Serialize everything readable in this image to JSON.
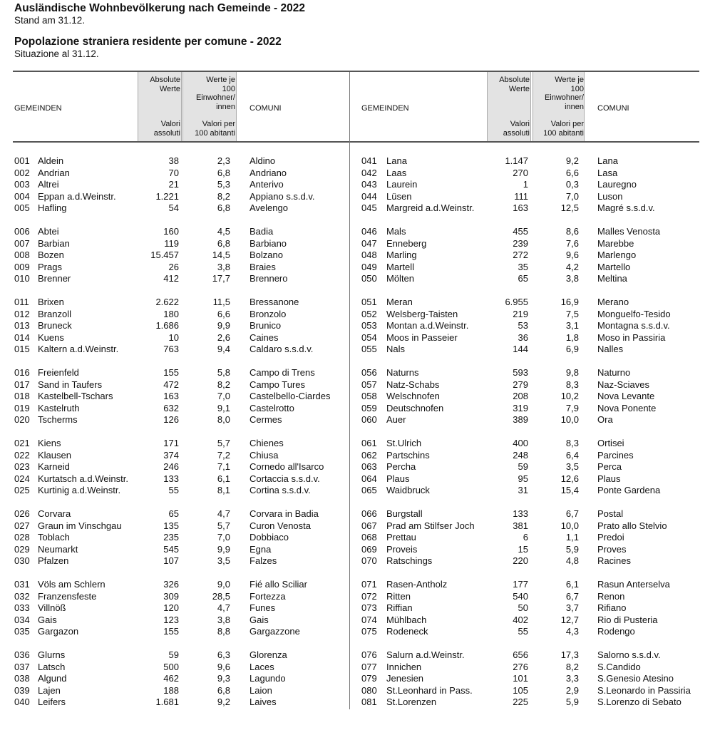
{
  "title_de": "Ausländische Wohnbevölkerung nach Gemeinde - 2022",
  "subtitle_de": "Stand am 31.12.",
  "title_it": "Popolazione straniera residente per comune - 2022",
  "subtitle_it": "Situazione al 31.12.",
  "header": {
    "gemeinden": "GEMEINDEN",
    "comuni": "COMUNI",
    "abs_de": [
      "Absolute",
      "Werte"
    ],
    "abs_it": [
      "Valori",
      "assoluti"
    ],
    "rel_de": [
      "Werte je",
      "100",
      "Einwohner/",
      "innen"
    ],
    "rel_it": [
      "Valori per",
      "100 abitanti"
    ]
  },
  "left": [
    [
      [
        "001",
        "Aldein",
        "38",
        "2,3",
        "Aldino"
      ],
      [
        "002",
        "Andrian",
        "70",
        "6,8",
        "Andriano"
      ],
      [
        "003",
        "Altrei",
        "21",
        "5,3",
        "Anterivo"
      ],
      [
        "004",
        "Eppan a.d.Weinstr.",
        "1.221",
        "8,2",
        "Appiano s.s.d.v."
      ],
      [
        "005",
        "Hafling",
        "54",
        "6,8",
        "Avelengo"
      ]
    ],
    [
      [
        "006",
        "Abtei",
        "160",
        "4,5",
        "Badia"
      ],
      [
        "007",
        "Barbian",
        "119",
        "6,8",
        "Barbiano"
      ],
      [
        "008",
        "Bozen",
        "15.457",
        "14,5",
        "Bolzano"
      ],
      [
        "009",
        "Prags",
        "26",
        "3,8",
        "Braies"
      ],
      [
        "010",
        "Brenner",
        "412",
        "17,7",
        "Brennero"
      ]
    ],
    [
      [
        "011",
        "Brixen",
        "2.622",
        "11,5",
        "Bressanone"
      ],
      [
        "012",
        "Branzoll",
        "180",
        "6,6",
        "Bronzolo"
      ],
      [
        "013",
        "Bruneck",
        "1.686",
        "9,9",
        "Brunico"
      ],
      [
        "014",
        "Kuens",
        "10",
        "2,6",
        "Caines"
      ],
      [
        "015",
        "Kaltern a.d.Weinstr.",
        "763",
        "9,4",
        "Caldaro s.s.d.v."
      ]
    ],
    [
      [
        "016",
        "Freienfeld",
        "155",
        "5,8",
        "Campo di Trens"
      ],
      [
        "017",
        "Sand in Taufers",
        "472",
        "8,2",
        "Campo Tures"
      ],
      [
        "018",
        "Kastelbell-Tschars",
        "163",
        "7,0",
        "Castelbello-Ciardes"
      ],
      [
        "019",
        "Kastelruth",
        "632",
        "9,1",
        "Castelrotto"
      ],
      [
        "020",
        "Tscherms",
        "126",
        "8,0",
        "Cermes"
      ]
    ],
    [
      [
        "021",
        "Kiens",
        "171",
        "5,7",
        "Chienes"
      ],
      [
        "022",
        "Klausen",
        "374",
        "7,2",
        "Chiusa"
      ],
      [
        "023",
        "Karneid",
        "246",
        "7,1",
        "Cornedo all'Isarco"
      ],
      [
        "024",
        "Kurtatsch a.d.Weinstr.",
        "133",
        "6,1",
        "Cortaccia s.s.d.v."
      ],
      [
        "025",
        "Kurtinig a.d.Weinstr.",
        "55",
        "8,1",
        "Cortina s.s.d.v."
      ]
    ],
    [
      [
        "026",
        "Corvara",
        "65",
        "4,7",
        "Corvara in Badia"
      ],
      [
        "027",
        "Graun im Vinschgau",
        "135",
        "5,7",
        "Curon Venosta"
      ],
      [
        "028",
        "Toblach",
        "235",
        "7,0",
        "Dobbiaco"
      ],
      [
        "029",
        "Neumarkt",
        "545",
        "9,9",
        "Egna"
      ],
      [
        "030",
        "Pfalzen",
        "107",
        "3,5",
        "Falzes"
      ]
    ],
    [
      [
        "031",
        "Völs am Schlern",
        "326",
        "9,0",
        "Fié allo Sciliar"
      ],
      [
        "032",
        "Franzensfeste",
        "309",
        "28,5",
        "Fortezza"
      ],
      [
        "033",
        "Villnöß",
        "120",
        "4,7",
        "Funes"
      ],
      [
        "034",
        "Gais",
        "123",
        "3,8",
        "Gais"
      ],
      [
        "035",
        "Gargazon",
        "155",
        "8,8",
        "Gargazzone"
      ]
    ],
    [
      [
        "036",
        "Glurns",
        "59",
        "6,3",
        "Glorenza"
      ],
      [
        "037",
        "Latsch",
        "500",
        "9,6",
        "Laces"
      ],
      [
        "038",
        "Algund",
        "462",
        "9,3",
        "Lagundo"
      ],
      [
        "039",
        "Lajen",
        "188",
        "6,8",
        "Laion"
      ],
      [
        "040",
        "Leifers",
        "1.681",
        "9,2",
        "Laives"
      ]
    ]
  ],
  "right": [
    [
      [
        "041",
        "Lana",
        "1.147",
        "9,2",
        "Lana"
      ],
      [
        "042",
        "Laas",
        "270",
        "6,6",
        "Lasa"
      ],
      [
        "043",
        "Laurein",
        "1",
        "0,3",
        "Lauregno"
      ],
      [
        "044",
        "Lüsen",
        "111",
        "7,0",
        "Luson"
      ],
      [
        "045",
        "Margreid a.d.Weinstr.",
        "163",
        "12,5",
        "Magré s.s.d.v."
      ]
    ],
    [
      [
        "046",
        "Mals",
        "455",
        "8,6",
        "Malles Venosta"
      ],
      [
        "047",
        "Enneberg",
        "239",
        "7,6",
        "Marebbe"
      ],
      [
        "048",
        "Marling",
        "272",
        "9,6",
        "Marlengo"
      ],
      [
        "049",
        "Martell",
        "35",
        "4,2",
        "Martello"
      ],
      [
        "050",
        "Mölten",
        "65",
        "3,8",
        "Meltina"
      ]
    ],
    [
      [
        "051",
        "Meran",
        "6.955",
        "16,9",
        "Merano"
      ],
      [
        "052",
        "Welsberg-Taisten",
        "219",
        "7,5",
        "Monguelfo-Tesido"
      ],
      [
        "053",
        "Montan a.d.Weinstr.",
        "53",
        "3,1",
        "Montagna s.s.d.v."
      ],
      [
        "054",
        "Moos in Passeier",
        "36",
        "1,8",
        "Moso in Passiria"
      ],
      [
        "055",
        "Nals",
        "144",
        "6,9",
        "Nalles"
      ]
    ],
    [
      [
        "056",
        "Naturns",
        "593",
        "9,8",
        "Naturno"
      ],
      [
        "057",
        "Natz-Schabs",
        "279",
        "8,3",
        "Naz-Sciaves"
      ],
      [
        "058",
        "Welschnofen",
        "208",
        "10,2",
        "Nova Levante"
      ],
      [
        "059",
        "Deutschnofen",
        "319",
        "7,9",
        "Nova Ponente"
      ],
      [
        "060",
        "Auer",
        "389",
        "10,0",
        "Ora"
      ]
    ],
    [
      [
        "061",
        "St.Ulrich",
        "400",
        "8,3",
        "Ortisei"
      ],
      [
        "062",
        "Partschins",
        "248",
        "6,4",
        "Parcines"
      ],
      [
        "063",
        "Percha",
        "59",
        "3,5",
        "Perca"
      ],
      [
        "064",
        "Plaus",
        "95",
        "12,6",
        "Plaus"
      ],
      [
        "065",
        "Waidbruck",
        "31",
        "15,4",
        "Ponte Gardena"
      ]
    ],
    [
      [
        "066",
        "Burgstall",
        "133",
        "6,7",
        "Postal"
      ],
      [
        "067",
        "Prad am Stilfser Joch",
        "381",
        "10,0",
        "Prato allo Stelvio"
      ],
      [
        "068",
        "Prettau",
        "6",
        "1,1",
        "Predoi"
      ],
      [
        "069",
        "Proveis",
        "15",
        "5,9",
        "Proves"
      ],
      [
        "070",
        "Ratschings",
        "220",
        "4,8",
        "Racines"
      ]
    ],
    [
      [
        "071",
        "Rasen-Antholz",
        "177",
        "6,1",
        "Rasun Anterselva"
      ],
      [
        "072",
        "Ritten",
        "540",
        "6,7",
        "Renon"
      ],
      [
        "073",
        "Riffian",
        "50",
        "3,7",
        "Rifiano"
      ],
      [
        "074",
        "Mühlbach",
        "402",
        "12,7",
        "Rio di Pusteria"
      ],
      [
        "075",
        "Rodeneck",
        "55",
        "4,3",
        "Rodengo"
      ]
    ],
    [
      [
        "076",
        "Salurn a.d.Weinstr.",
        "656",
        "17,3",
        "Salorno s.s.d.v."
      ],
      [
        "077",
        "Innichen",
        "276",
        "8,2",
        "S.Candido"
      ],
      [
        "079",
        "Jenesien",
        "101",
        "3,3",
        "S.Genesio Atesino"
      ],
      [
        "080",
        "St.Leonhard in Pass.",
        "105",
        "2,9",
        "S.Leonardo in Passiria"
      ],
      [
        "081",
        "St.Lorenzen",
        "225",
        "5,9",
        "S.Lorenzo di Sebato"
      ]
    ]
  ]
}
